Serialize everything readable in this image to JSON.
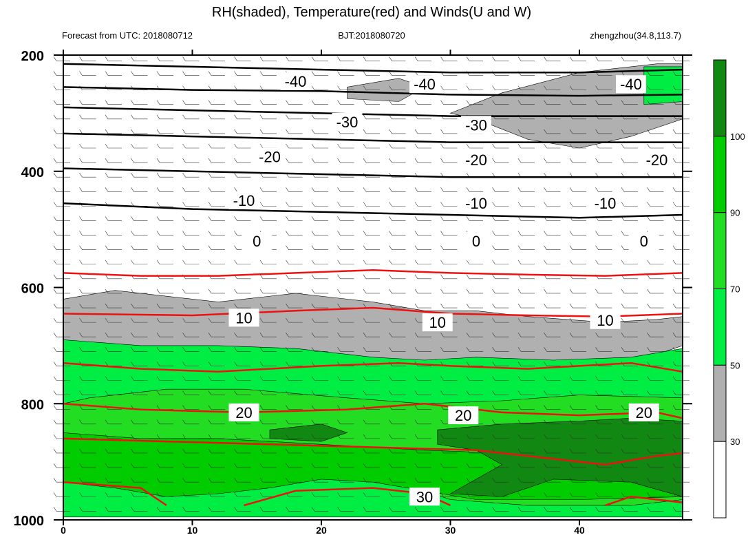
{
  "chart_data": {
    "type": "contour",
    "title": "RH(shaded), Temperature(red) and Winds(U and W)",
    "subtitle_left": "Forecast from UTC: 2018080712",
    "subtitle_center": "BJT:2018080720",
    "subtitle_right": "zhengzhou(34.8,113.7)",
    "x_ticks": [
      0,
      10,
      20,
      30,
      40
    ],
    "y_ticks": [
      200,
      400,
      600,
      800,
      1000
    ],
    "xlim": [
      0,
      48
    ],
    "ylim": [
      200,
      1000
    ],
    "y_reversed": true,
    "colorbar_labels": [
      "30",
      "50",
      "70",
      "90",
      "100"
    ],
    "colorbar_colors": [
      "#ffffff",
      "#b0b0b0",
      "#00ee44",
      "#22dd22",
      "#00cc00",
      "#118811"
    ],
    "rh_regions": [
      {
        "level": "gray",
        "color": "#b0b0b0",
        "points": [
          [
            0,
            620
          ],
          [
            4,
            605
          ],
          [
            8,
            615
          ],
          [
            12,
            625
          ],
          [
            18,
            610
          ],
          [
            24,
            625
          ],
          [
            28,
            640
          ],
          [
            32,
            640
          ],
          [
            36,
            650
          ],
          [
            42,
            660
          ],
          [
            46,
            655
          ],
          [
            48,
            650
          ],
          [
            48,
            700
          ],
          [
            44,
            730
          ],
          [
            38,
            735
          ],
          [
            32,
            730
          ],
          [
            24,
            730
          ],
          [
            20,
            720
          ],
          [
            12,
            720
          ],
          [
            6,
            725
          ],
          [
            0,
            720
          ]
        ]
      },
      {
        "level": "green",
        "color": "#00ee44",
        "points": [
          [
            0,
            690
          ],
          [
            6,
            700
          ],
          [
            12,
            700
          ],
          [
            18,
            705
          ],
          [
            24,
            720
          ],
          [
            28,
            725
          ],
          [
            32,
            720
          ],
          [
            38,
            725
          ],
          [
            44,
            720
          ],
          [
            48,
            705
          ],
          [
            48,
            995
          ],
          [
            0,
            995
          ]
        ]
      },
      {
        "level": "bright",
        "color": "#22dd22",
        "points": [
          [
            2,
            790
          ],
          [
            8,
            775
          ],
          [
            14,
            775
          ],
          [
            22,
            790
          ],
          [
            28,
            800
          ],
          [
            34,
            795
          ],
          [
            40,
            785
          ],
          [
            48,
            790
          ],
          [
            48,
            965
          ],
          [
            44,
            975
          ],
          [
            36,
            975
          ],
          [
            30,
            965
          ],
          [
            26,
            935
          ],
          [
            20,
            920
          ],
          [
            14,
            935
          ],
          [
            10,
            945
          ],
          [
            6,
            950
          ],
          [
            2,
            935
          ],
          [
            0,
            930
          ],
          [
            0,
            800
          ]
        ]
      },
      {
        "level": "lime",
        "color": "#00cc00",
        "points": [
          [
            0,
            850
          ],
          [
            6,
            860
          ],
          [
            12,
            860
          ],
          [
            20,
            870
          ],
          [
            28,
            880
          ],
          [
            34,
            885
          ],
          [
            40,
            890
          ],
          [
            48,
            890
          ],
          [
            48,
            960
          ],
          [
            40,
            965
          ],
          [
            32,
            965
          ],
          [
            28,
            950
          ],
          [
            24,
            935
          ],
          [
            20,
            930
          ],
          [
            16,
            945
          ],
          [
            12,
            955
          ],
          [
            8,
            960
          ],
          [
            4,
            945
          ],
          [
            0,
            935
          ]
        ]
      },
      {
        "level": "dark",
        "color": "#118811",
        "points": [
          [
            16,
            845
          ],
          [
            20,
            835
          ],
          [
            22,
            850
          ],
          [
            20,
            865
          ],
          [
            16,
            860
          ]
        ]
      },
      {
        "level": "dark",
        "color": "#118811",
        "points": [
          [
            29,
            845
          ],
          [
            34,
            835
          ],
          [
            40,
            830
          ],
          [
            44,
            825
          ],
          [
            48,
            830
          ],
          [
            48,
            960
          ],
          [
            44,
            935
          ],
          [
            38,
            930
          ],
          [
            34,
            960
          ],
          [
            30,
            955
          ],
          [
            34,
            905
          ],
          [
            32,
            880
          ],
          [
            29,
            870
          ]
        ]
      },
      {
        "level": "upper-gray",
        "color": "#b0b0b0",
        "points": [
          [
            22,
            255
          ],
          [
            26,
            240
          ],
          [
            28,
            255
          ],
          [
            26,
            280
          ],
          [
            22,
            275
          ]
        ]
      },
      {
        "level": "upper-gray",
        "color": "#b0b0b0",
        "points": [
          [
            30,
            300
          ],
          [
            34,
            265
          ],
          [
            40,
            230
          ],
          [
            46,
            215
          ],
          [
            48,
            215
          ],
          [
            48,
            310
          ],
          [
            44,
            340
          ],
          [
            40,
            360
          ],
          [
            36,
            345
          ],
          [
            32,
            310
          ]
        ]
      },
      {
        "level": "upper-green",
        "color": "#00ee44",
        "points": [
          [
            45,
            220
          ],
          [
            48,
            220
          ],
          [
            48,
            280
          ],
          [
            45,
            285
          ]
        ]
      }
    ],
    "temperature_contours": [
      {
        "label": "-40",
        "points": [
          [
            0,
            235
          ],
          [
            10,
            240
          ],
          [
            20,
            245
          ],
          [
            30,
            250
          ],
          [
            40,
            250
          ],
          [
            48,
            245
          ]
        ],
        "label_at": [
          [
            18,
            245
          ],
          [
            28,
            250
          ],
          [
            44,
            250
          ]
        ]
      },
      {
        "label": "-30",
        "points": [
          [
            0,
            305
          ],
          [
            10,
            310
          ],
          [
            20,
            315
          ],
          [
            30,
            320
          ],
          [
            40,
            325
          ],
          [
            48,
            325
          ]
        ],
        "label_at": [
          [
            22,
            315
          ],
          [
            32,
            320
          ]
        ]
      },
      {
        "label": "-20",
        "points": [
          [
            0,
            365
          ],
          [
            10,
            370
          ],
          [
            20,
            375
          ],
          [
            30,
            380
          ],
          [
            40,
            380
          ],
          [
            48,
            380
          ]
        ],
        "label_at": [
          [
            16,
            375
          ],
          [
            32,
            380
          ],
          [
            46,
            380
          ]
        ]
      },
      {
        "label": "-10",
        "points": [
          [
            0,
            440
          ],
          [
            10,
            445
          ],
          [
            20,
            450
          ],
          [
            30,
            455
          ],
          [
            40,
            455
          ],
          [
            48,
            455
          ]
        ],
        "label_at": [
          [
            14,
            450
          ],
          [
            32,
            455
          ],
          [
            42,
            455
          ]
        ]
      },
      {
        "label": "0",
        "points": [],
        "label_at": [
          [
            15,
            520
          ],
          [
            32,
            520
          ],
          [
            45,
            520
          ]
        ]
      },
      {
        "label": "10",
        "points": [
          [
            0,
            650
          ],
          [
            10,
            652
          ],
          [
            20,
            645
          ],
          [
            30,
            650
          ],
          [
            40,
            650
          ],
          [
            48,
            648
          ]
        ],
        "label_at": [
          [
            14,
            652
          ],
          [
            29,
            660
          ],
          [
            42,
            656
          ]
        ]
      },
      {
        "label": "20",
        "points": [
          [
            0,
            800
          ],
          [
            10,
            810
          ],
          [
            20,
            815
          ],
          [
            30,
            820
          ],
          [
            40,
            820
          ],
          [
            48,
            815
          ]
        ],
        "label_at": [
          [
            14,
            815
          ],
          [
            31,
            820
          ],
          [
            45,
            815
          ]
        ]
      },
      {
        "label": "30",
        "points": [
          [
            0,
            935
          ],
          [
            6,
            940
          ],
          [
            12,
            945
          ],
          [
            20,
            950
          ],
          [
            26,
            955
          ],
          [
            30,
            965
          ]
        ],
        "label_at": [
          [
            28,
            960
          ]
        ]
      }
    ],
    "red_temp_lines": [
      [
        [
          0,
          575
        ],
        [
          6,
          580
        ],
        [
          12,
          580
        ],
        [
          18,
          575
        ],
        [
          24,
          570
        ],
        [
          30,
          575
        ],
        [
          36,
          578
        ],
        [
          42,
          580
        ],
        [
          48,
          575
        ]
      ],
      [
        [
          0,
          645
        ],
        [
          10,
          648
        ],
        [
          18,
          640
        ],
        [
          24,
          635
        ],
        [
          30,
          645
        ],
        [
          36,
          648
        ],
        [
          42,
          650
        ],
        [
          48,
          645
        ]
      ],
      [
        [
          0,
          730
        ],
        [
          6,
          740
        ],
        [
          12,
          745
        ],
        [
          20,
          735
        ],
        [
          26,
          730
        ],
        [
          30,
          735
        ],
        [
          36,
          740
        ],
        [
          40,
          735
        ],
        [
          44,
          730
        ],
        [
          48,
          745
        ]
      ],
      [
        [
          0,
          800
        ],
        [
          6,
          810
        ],
        [
          14,
          815
        ],
        [
          22,
          810
        ],
        [
          28,
          800
        ],
        [
          34,
          815
        ],
        [
          40,
          820
        ],
        [
          46,
          815
        ],
        [
          48,
          825
        ]
      ],
      [
        [
          0,
          860
        ],
        [
          8,
          865
        ],
        [
          16,
          870
        ],
        [
          24,
          875
        ],
        [
          32,
          880
        ],
        [
          38,
          895
        ],
        [
          42,
          905
        ],
        [
          46,
          890
        ],
        [
          48,
          885
        ]
      ],
      [
        [
          0,
          935
        ],
        [
          6,
          945
        ],
        [
          8,
          975
        ]
      ],
      [
        [
          14,
          975
        ],
        [
          18,
          950
        ],
        [
          24,
          945
        ],
        [
          28,
          955
        ],
        [
          30,
          975
        ]
      ],
      [
        [
          42,
          975
        ],
        [
          44,
          960
        ],
        [
          48,
          970
        ]
      ]
    ],
    "black_temp_lines": [
      [
        [
          0,
          215
        ],
        [
          10,
          220
        ],
        [
          20,
          225
        ],
        [
          30,
          230
        ],
        [
          40,
          230
        ],
        [
          48,
          225
        ]
      ],
      [
        [
          0,
          255
        ],
        [
          10,
          260
        ],
        [
          20,
          262
        ],
        [
          30,
          268
        ],
        [
          40,
          270
        ],
        [
          48,
          268
        ]
      ],
      [
        [
          0,
          290
        ],
        [
          10,
          295
        ],
        [
          20,
          300
        ],
        [
          30,
          305
        ],
        [
          40,
          305
        ],
        [
          48,
          305
        ]
      ],
      [
        [
          0,
          335
        ],
        [
          10,
          340
        ],
        [
          20,
          345
        ],
        [
          30,
          350
        ],
        [
          40,
          350
        ],
        [
          48,
          350
        ]
      ],
      [
        [
          0,
          395
        ],
        [
          10,
          400
        ],
        [
          20,
          405
        ],
        [
          30,
          410
        ],
        [
          40,
          410
        ],
        [
          48,
          410
        ]
      ],
      [
        [
          0,
          455
        ],
        [
          10,
          465
        ],
        [
          20,
          470
        ],
        [
          30,
          475
        ],
        [
          40,
          480
        ],
        [
          48,
          475
        ]
      ]
    ]
  }
}
